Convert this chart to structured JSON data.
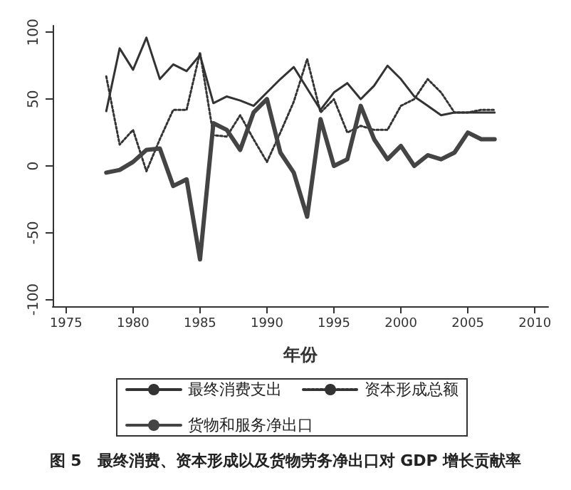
{
  "chart_data": {
    "type": "line",
    "xlabel": "年份",
    "x": [
      1978,
      1979,
      1980,
      1981,
      1982,
      1983,
      1984,
      1985,
      1986,
      1987,
      1988,
      1989,
      1990,
      1991,
      1992,
      1993,
      1994,
      1995,
      1996,
      1997,
      1998,
      1999,
      2000,
      2001,
      2002,
      2003,
      2004,
      2005,
      2006,
      2007
    ],
    "series": [
      {
        "name": "最终消费支出",
        "color": "#333333",
        "line_style": "solid",
        "values": [
          41,
          88,
          72,
          96,
          65,
          76,
          71,
          83,
          47,
          52,
          49,
          45,
          55,
          65,
          74,
          58,
          42,
          55,
          62,
          50,
          60,
          75,
          65,
          52,
          45,
          38,
          40,
          40,
          40,
          40
        ]
      },
      {
        "name": "资本形成总额",
        "color": "#333333",
        "line_style": "dotted",
        "values": [
          67,
          16,
          27,
          -4,
          20,
          42,
          42,
          85,
          23,
          22,
          38,
          20,
          3,
          25,
          48,
          80,
          40,
          50,
          25,
          30,
          27,
          27,
          45,
          50,
          65,
          55,
          40,
          40,
          42,
          42
        ]
      },
      {
        "name": "货物和服务净出口",
        "color": "#444444",
        "line_style": "solid",
        "values": [
          -5,
          -3,
          3,
          12,
          13,
          -15,
          -10,
          -70,
          32,
          27,
          12,
          40,
          50,
          10,
          -5,
          -38,
          35,
          0,
          5,
          45,
          20,
          5,
          15,
          0,
          8,
          5,
          10,
          25,
          20,
          20
        ]
      }
    ],
    "xlim": [
      1974,
      2011
    ],
    "xticks": [
      1975,
      1980,
      1985,
      1990,
      1995,
      2000,
      2005,
      2010
    ],
    "ylim": [
      -105,
      105
    ],
    "yticks": [
      -100,
      -50,
      0,
      50,
      100
    ],
    "grid": false,
    "legend": "bottom",
    "marker": "none",
    "annotations": [
      "图 5　最终消费、资本形成以及货物劳务净出口对 GDP 增长贡献率"
    ]
  }
}
